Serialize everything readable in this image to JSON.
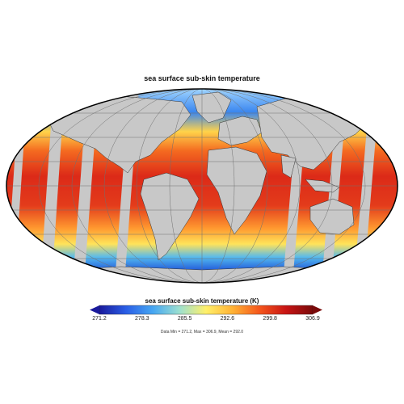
{
  "map": {
    "title": "sea surface sub-skin temperature",
    "projection": "Mollweide",
    "colors": {
      "land": "#c8c8c8",
      "outline": "#000000",
      "graticule": "#707070",
      "swath_gap": "#c8c8c8"
    }
  },
  "colorbar": {
    "title": "sea surface sub-skin temperature (K)",
    "ticks": [
      "271.2",
      "278.3",
      "285.5",
      "292.6",
      "299.8",
      "306.9"
    ],
    "range": [
      271.2,
      306.9
    ],
    "colors": [
      "#1a1a9c",
      "#2a5ee6",
      "#46a6f2",
      "#9ce0d0",
      "#fff06a",
      "#ffb235",
      "#f5571c",
      "#c81414",
      "#7a0a0a"
    ]
  },
  "stats": {
    "text": "Data Min = 271.2, Max = 306.9, Mean = 292.0"
  }
}
